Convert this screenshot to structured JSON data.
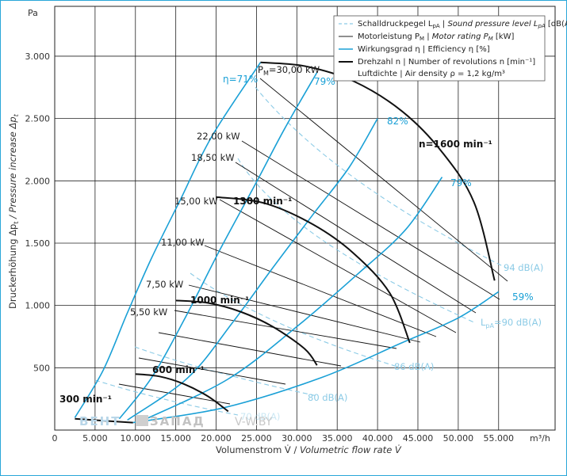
{
  "chart_data": {
    "type": "line",
    "title": "",
    "xlabel": "Volumenstrom V̇ / Volumetric flow rate V̇",
    "ylabel": "Druckerhöhung Δpt / Pressure increase Δpt",
    "x_unit": "m³/h",
    "y_unit": "Pa",
    "xlim": [
      0,
      62000
    ],
    "ylim": [
      0,
      3400
    ],
    "x_ticks": [
      0,
      5000,
      10000,
      15000,
      20000,
      25000,
      30000,
      35000,
      40000,
      45000,
      50000,
      55000
    ],
    "x_tick_labels": [
      "0",
      "5.000",
      "10.000",
      "15.000",
      "20.000",
      "25.000",
      "30.000",
      "35.000",
      "40.000",
      "45.000",
      "50.000",
      "55.000"
    ],
    "y_ticks": [
      500,
      1000,
      1500,
      2000,
      2500,
      3000
    ],
    "y_tick_labels": [
      "500",
      "1.000",
      "1.500",
      "2.000",
      "2.500",
      "3.000"
    ],
    "grid": true,
    "legend_position": "top-right",
    "legend": [
      {
        "style": "dashed-light-blue",
        "text": "Schalldruckpegel LpA | Sound pressure level LpA [dB(A)]"
      },
      {
        "style": "thin-black",
        "text": "Motorleistung PM | Motor rating PM [kW]"
      },
      {
        "style": "blue",
        "text": "Wirkungsgrad η | Efficiency η [%]"
      },
      {
        "style": "thick-black",
        "text": "Drehzahl n | Number of revolutions n [min⁻¹]"
      },
      {
        "style": "none",
        "text": "Luftdichte | Air density ρ = 1,2 kg/m³"
      }
    ],
    "speed_curves": [
      {
        "name": "300 min⁻¹",
        "points": [
          [
            2500,
            90
          ],
          [
            9700,
            60
          ]
        ]
      },
      {
        "name": "600 min⁻¹",
        "points": [
          [
            10000,
            450
          ],
          [
            13000,
            430
          ],
          [
            16000,
            370
          ],
          [
            19000,
            270
          ],
          [
            21500,
            150
          ]
        ]
      },
      {
        "name": "1000 min⁻¹",
        "points": [
          [
            15000,
            1040
          ],
          [
            19000,
            1020
          ],
          [
            23000,
            950
          ],
          [
            27000,
            830
          ],
          [
            31000,
            650
          ],
          [
            32500,
            520
          ]
        ]
      },
      {
        "name": "1300 min⁻¹",
        "points": [
          [
            20000,
            1870
          ],
          [
            26000,
            1820
          ],
          [
            32000,
            1650
          ],
          [
            37000,
            1420
          ],
          [
            41500,
            1100
          ],
          [
            44000,
            700
          ]
        ]
      },
      {
        "name": "n=1600 min⁻¹",
        "points": [
          [
            25500,
            2950
          ],
          [
            31000,
            2920
          ],
          [
            37000,
            2800
          ],
          [
            43000,
            2560
          ],
          [
            48000,
            2230
          ],
          [
            52000,
            1820
          ],
          [
            54500,
            1200
          ]
        ]
      }
    ],
    "efficiency_lines": [
      {
        "name": "η=71%",
        "points": [
          [
            2500,
            100
          ],
          [
            6000,
            480
          ],
          [
            9000,
            940
          ],
          [
            12000,
            1380
          ],
          [
            15500,
            1840
          ],
          [
            19500,
            2360
          ],
          [
            25500,
            2950
          ]
        ]
      },
      {
        "name": "79%",
        "points": [
          [
            8000,
            90
          ],
          [
            12000,
            420
          ],
          [
            16000,
            880
          ],
          [
            20500,
            1450
          ],
          [
            25000,
            1990
          ],
          [
            28500,
            2420
          ],
          [
            32500,
            2870
          ]
        ]
      },
      {
        "name": "82%",
        "points": [
          [
            9000,
            80
          ],
          [
            16500,
            420
          ],
          [
            22000,
            860
          ],
          [
            27000,
            1300
          ],
          [
            32000,
            1730
          ],
          [
            36500,
            2110
          ],
          [
            40000,
            2500
          ]
        ]
      },
      {
        "name": "79%",
        "points": [
          [
            11000,
            80
          ],
          [
            21500,
            410
          ],
          [
            30000,
            830
          ],
          [
            37500,
            1250
          ],
          [
            43500,
            1610
          ],
          [
            48000,
            2030
          ]
        ]
      },
      {
        "name": "59%",
        "points": [
          [
            9700,
            60
          ],
          [
            21000,
            180
          ],
          [
            33000,
            420
          ],
          [
            43000,
            700
          ],
          [
            50000,
            900
          ],
          [
            55000,
            1110
          ]
        ]
      }
    ],
    "motor_ratings": [
      "30,00 kW",
      "22,00 kW",
      "18,50 kW",
      "15,00 kW",
      "11,00 kW",
      "7,50 kW",
      "5,50 kW"
    ],
    "sound_levels": [
      "94 dB(A)",
      "LpA=90 dB(A)",
      "86 dB(A)",
      "80 dB(A)"
    ],
    "efficiency_labels": [
      "η=71%",
      "79%",
      "82%",
      "79%",
      "59%"
    ],
    "speed_labels": [
      "300 min⁻¹",
      "600 min⁻¹",
      "1000 min⁻¹",
      "1300 min⁻¹",
      "n=1600 min⁻¹"
    ]
  },
  "labels": {
    "pa": "Pa",
    "x_unit": "m³/h",
    "pm30_prefix": "P",
    "pm30_sub": "M",
    "pm30_value": "=30,00 kW",
    "eff71": "η=71%",
    "eff79a": "79%",
    "eff82": "82%",
    "eff79b": "79%",
    "eff59": "59%",
    "kw22": "22,00 kW",
    "kw185": "18,50 kW",
    "kw15": "15,00 kW",
    "kw11": "11,00 kW",
    "kw75": "7,50 kW",
    "kw55": "5,50 kW",
    "rpm1600": "n=1600 min⁻¹",
    "rpm1300": "1300 min⁻¹",
    "rpm1000": "1000 min⁻¹",
    "rpm600": "600 min⁻¹",
    "rpm300": "300 min⁻¹",
    "db94": "94 dB(A)",
    "db90_prefix": "L",
    "db90_sub": "pA",
    "db90_value": "=90 dB(A)",
    "db86": "86 dB(A)",
    "db80": "80 dB(A)",
    "db_faint": "70 dB(A)",
    "ylabel_de": "Druckerhöhung Δp",
    "ylabel_sub1": "t",
    "ylabel_en": " / Pressure increase Δp",
    "ylabel_sub2": "t",
    "xlabel_de": "Volumenstrom V̇ / ",
    "xlabel_en": "Volumetric flow rate V̇",
    "watermark1": "ВЕНТ",
    "watermark2": "ЗАПАД",
    "watermark3": "V-W.BY",
    "legend1_a": "Schalldruckpegel L",
    "legend1_sub": "pA",
    "legend1_b": " | Sound pressure level L",
    "legend1_sub2": "pA",
    "legend1_c": " [dB(A)]",
    "legend2_a": "Motorleistung P",
    "legend2_sub": "M",
    "legend2_b": " | Motor rating P",
    "legend2_sub2": "M",
    "legend2_c": " [kW]",
    "legend3": "Wirkungsgrad η | Efficiency η [%]",
    "legend4": "Drehzahl n | Number of revolutions n [min⁻¹]",
    "legend5": "Luftdichte | Air density ρ = 1,2 kg/m³"
  },
  "colors": {
    "efficiency": "#1aa0d6",
    "sound": "#8ccbe6",
    "grid": "#222222",
    "speed": "#111111",
    "frame": "#2aa7d8"
  }
}
